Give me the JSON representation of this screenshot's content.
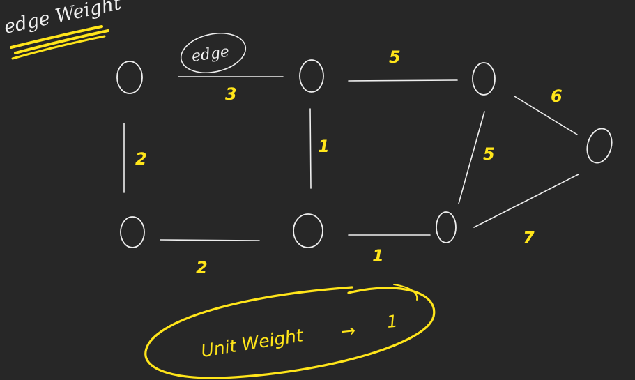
{
  "annotations": {
    "heading": "edge Weight",
    "edge_label": "edge",
    "unit_weight_text": "Unit Weight",
    "unit_weight_arrow": "→",
    "unit_weight_value": "1"
  },
  "colors": {
    "background": "#272727",
    "chalk_white": "#eeeeee",
    "highlight_yellow": "#ffe51a"
  },
  "graph": {
    "edge_weights": {
      "top_left_to_top_mid": "3",
      "top_mid_to_top_right": "5",
      "left_vertical": "2",
      "mid_vertical": "1",
      "right_diagonal": "5",
      "top_right_to_far_right": "6",
      "bottom_left_to_bottom_mid": "2",
      "bottom_mid_to_bottom_right": "1",
      "bottom_right_to_far_right": "7"
    }
  }
}
